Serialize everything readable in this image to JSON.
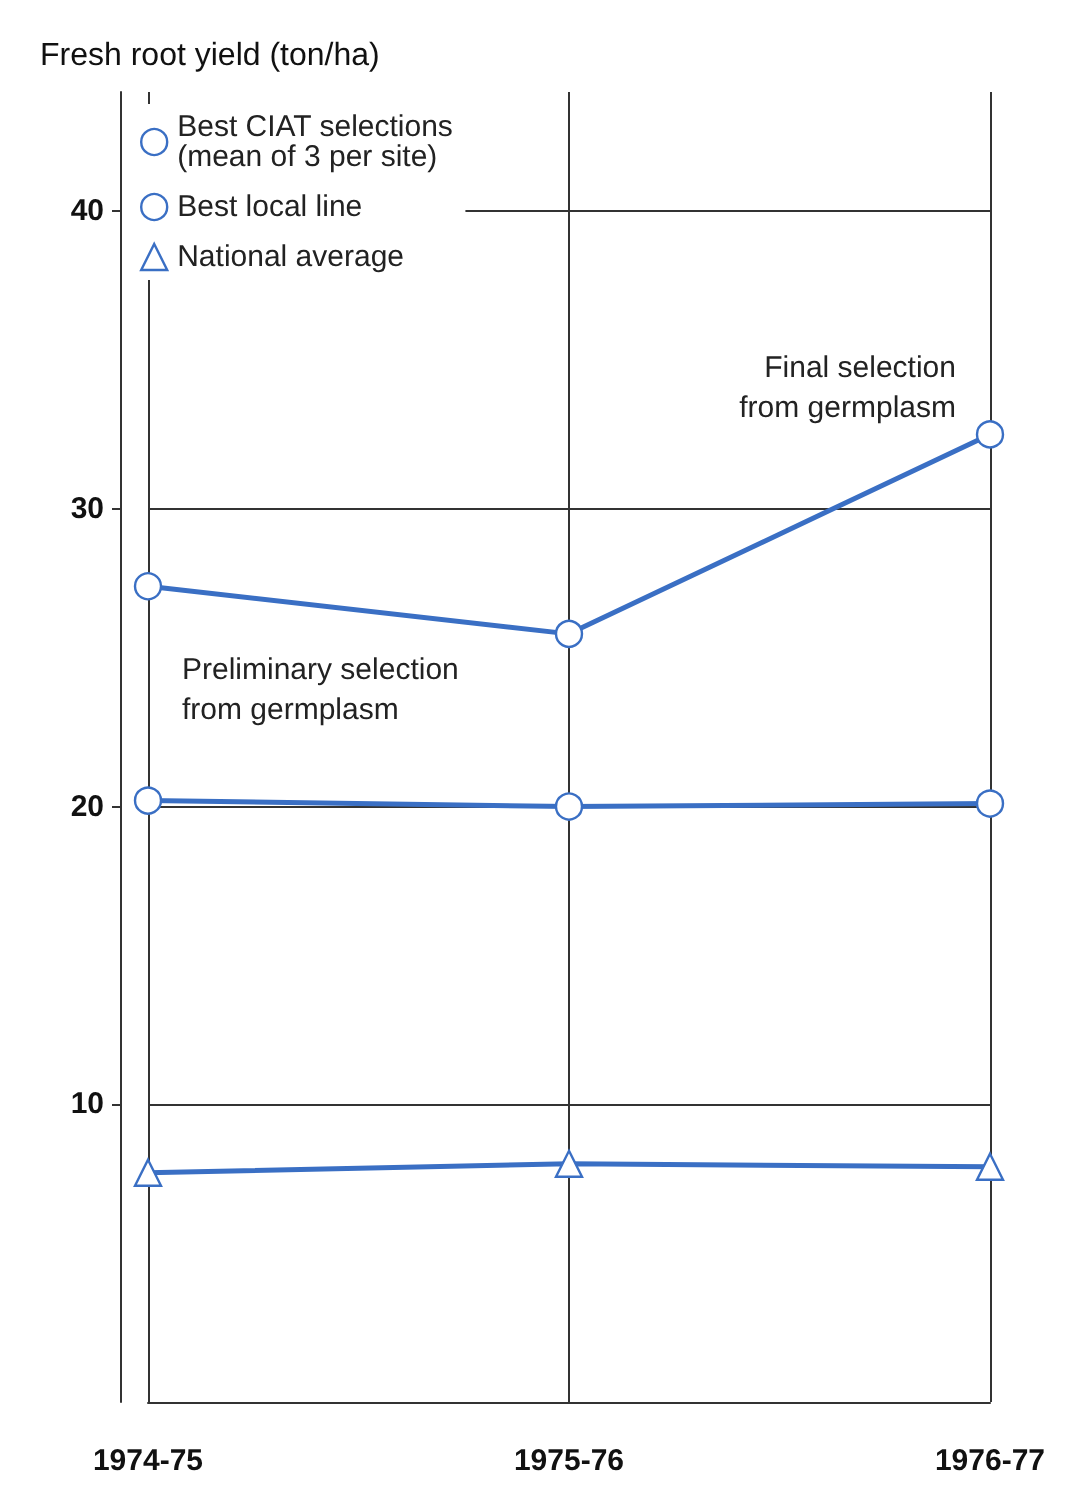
{
  "chart_data": {
    "type": "line",
    "ylabel": "Fresh root yield (ton/ha)",
    "categories": [
      "1974-75",
      "1975-76",
      "1976-77"
    ],
    "series": [
      {
        "name": "Best CIAT selections\n(mean of 3 per site)",
        "color": "#3a6fc4",
        "values": [
          27.4,
          25.8,
          32.5
        ],
        "marker": "circle"
      },
      {
        "name": "Best local line",
        "color": "#3a6fc4",
        "values": [
          20.2,
          20.0,
          20.1
        ],
        "marker": "circle"
      },
      {
        "name": "National average",
        "color": "#3a6fc4",
        "values": [
          7.7,
          8.0,
          7.9
        ],
        "marker": "triangle"
      }
    ],
    "annotations": [
      {
        "text": "Preliminary selection\nfrom germplasm",
        "x": "1974-75",
        "y": 27.4
      },
      {
        "text": "Final selection\nfrom germplasm",
        "x": "1976-77",
        "y": 32.5
      }
    ],
    "ylim": [
      0,
      44
    ],
    "yticks": [
      10,
      20,
      30,
      40
    ],
    "grid": true,
    "legend": "top left",
    "line_style": "solid"
  }
}
